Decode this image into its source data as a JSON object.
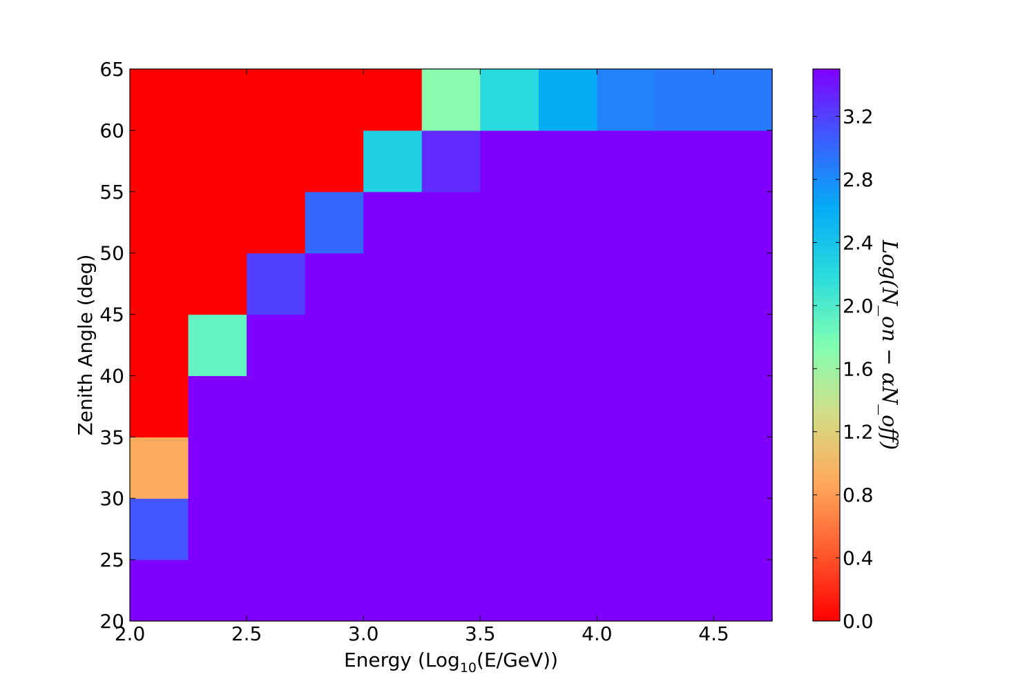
{
  "chart_data": {
    "type": "heatmap",
    "xlabel_main": "Energy (Log",
    "xlabel_sub": "10",
    "xlabel_tail": "(E/GeV))",
    "ylabel": "Zenith Angle (deg)",
    "colorbar_label": "Log(N_on − αN_off)",
    "xlim": [
      2.0,
      4.75
    ],
    "ylim": [
      20,
      65
    ],
    "x_ticks": [
      "2.0",
      "2.5",
      "3.0",
      "3.5",
      "4.0",
      "4.5"
    ],
    "y_ticks": [
      "20",
      "25",
      "30",
      "35",
      "40",
      "45",
      "50",
      "55",
      "60",
      "65"
    ],
    "colorbar_ticks": [
      "0.0",
      "0.4",
      "0.8",
      "1.2",
      "1.6",
      "2.0",
      "2.4",
      "2.8",
      "3.2"
    ],
    "colorbar_range": [
      0.0,
      3.5
    ],
    "colormap": "rainbow_r",
    "x_bin_edges": [
      2.0,
      2.25,
      2.5,
      2.75,
      3.0,
      3.25,
      3.5,
      3.75,
      4.0,
      4.25,
      4.5,
      4.75
    ],
    "y_bin_edges": [
      20,
      25,
      30,
      35,
      40,
      45,
      50,
      55,
      60,
      65
    ],
    "z": [
      [
        3.5,
        3.5,
        3.5,
        3.5,
        3.5,
        3.5,
        3.5,
        3.5,
        3.5,
        3.5,
        3.5
      ],
      [
        3.1,
        3.5,
        3.5,
        3.5,
        3.5,
        3.5,
        3.5,
        3.5,
        3.5,
        3.5,
        3.5
      ],
      [
        0.9,
        3.5,
        3.5,
        3.5,
        3.5,
        3.5,
        3.5,
        3.5,
        3.5,
        3.5,
        3.5
      ],
      [
        0.0,
        3.5,
        3.5,
        3.5,
        3.5,
        3.5,
        3.5,
        3.5,
        3.5,
        3.5,
        3.5
      ],
      [
        0.0,
        1.9,
        3.5,
        3.5,
        3.5,
        3.5,
        3.5,
        3.5,
        3.5,
        3.5,
        3.5
      ],
      [
        0.0,
        0.0,
        3.2,
        3.5,
        3.5,
        3.5,
        3.5,
        3.5,
        3.5,
        3.5,
        3.5
      ],
      [
        0.0,
        0.0,
        0.0,
        3.0,
        3.5,
        3.5,
        3.5,
        3.5,
        3.5,
        3.5,
        3.5
      ],
      [
        0.0,
        0.0,
        0.0,
        0.0,
        2.3,
        3.3,
        3.5,
        3.5,
        3.5,
        3.5,
        3.5
      ],
      [
        0.0,
        0.0,
        0.0,
        0.0,
        0.0,
        1.7,
        2.2,
        2.6,
        2.85,
        2.9,
        2.9
      ]
    ]
  }
}
